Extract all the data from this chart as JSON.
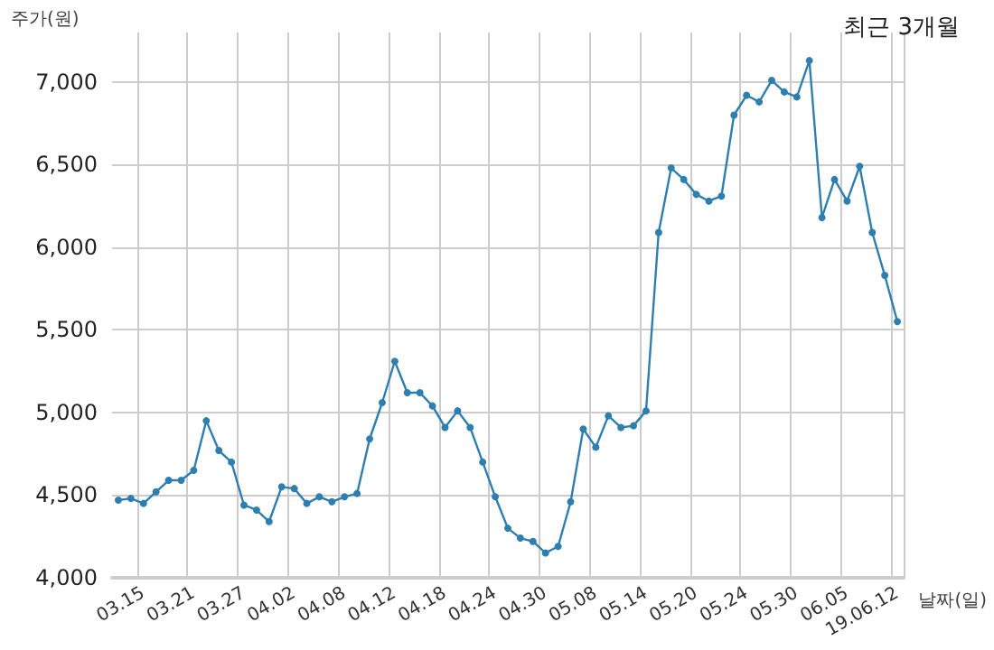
{
  "chart_data": {
    "type": "line",
    "title": "최근 3개월",
    "xlabel": "날짜(일)",
    "ylabel": "주가(원)",
    "categories": [
      null,
      null,
      "03.15",
      null,
      null,
      null,
      "03.21",
      null,
      null,
      null,
      "03.27",
      null,
      null,
      null,
      "04.02",
      null,
      null,
      null,
      "04.08",
      null,
      null,
      null,
      "04.12",
      null,
      null,
      null,
      "04.18",
      null,
      null,
      null,
      "04.24",
      null,
      null,
      null,
      "04.30",
      null,
      null,
      null,
      "05.08",
      null,
      null,
      null,
      "05.14",
      null,
      null,
      null,
      "05.20",
      null,
      null,
      null,
      "05.24",
      null,
      null,
      null,
      "05.30",
      null,
      null,
      null,
      "06.05",
      null,
      null,
      null,
      "19.06.12"
    ],
    "series": [
      {
        "color": "#2e7fb0",
        "values": [
          4470,
          4480,
          4450,
          4520,
          4590,
          4590,
          4650,
          4950,
          4770,
          4700,
          4440,
          4410,
          4340,
          4550,
          4540,
          4450,
          4490,
          4460,
          4490,
          4510,
          4840,
          5060,
          5310,
          5120,
          5120,
          5040,
          4910,
          5010,
          4910,
          4700,
          4490,
          4300,
          4240,
          4220,
          4150,
          4190,
          4460,
          4900,
          4790,
          4980,
          4910,
          4920,
          5010,
          6090,
          6480,
          6410,
          6320,
          6280,
          6310,
          6800,
          6920,
          6880,
          7010,
          6940,
          6910,
          7130,
          6180,
          6410,
          6280,
          6490,
          6090,
          5830,
          5550
        ]
      }
    ],
    "ylim": [
      4000,
      7300
    ],
    "yticks": [
      {
        "value": 4000,
        "label": "4,000"
      },
      {
        "value": 4500,
        "label": "4,500"
      },
      {
        "value": 5000,
        "label": "5,000"
      },
      {
        "value": 5500,
        "label": "5,500"
      },
      {
        "value": 6000,
        "label": "6,000"
      },
      {
        "value": 6500,
        "label": "6,500"
      },
      {
        "value": 7000,
        "label": "7,000"
      }
    ],
    "grid": true,
    "marker": "circle",
    "line_style": "solid"
  }
}
